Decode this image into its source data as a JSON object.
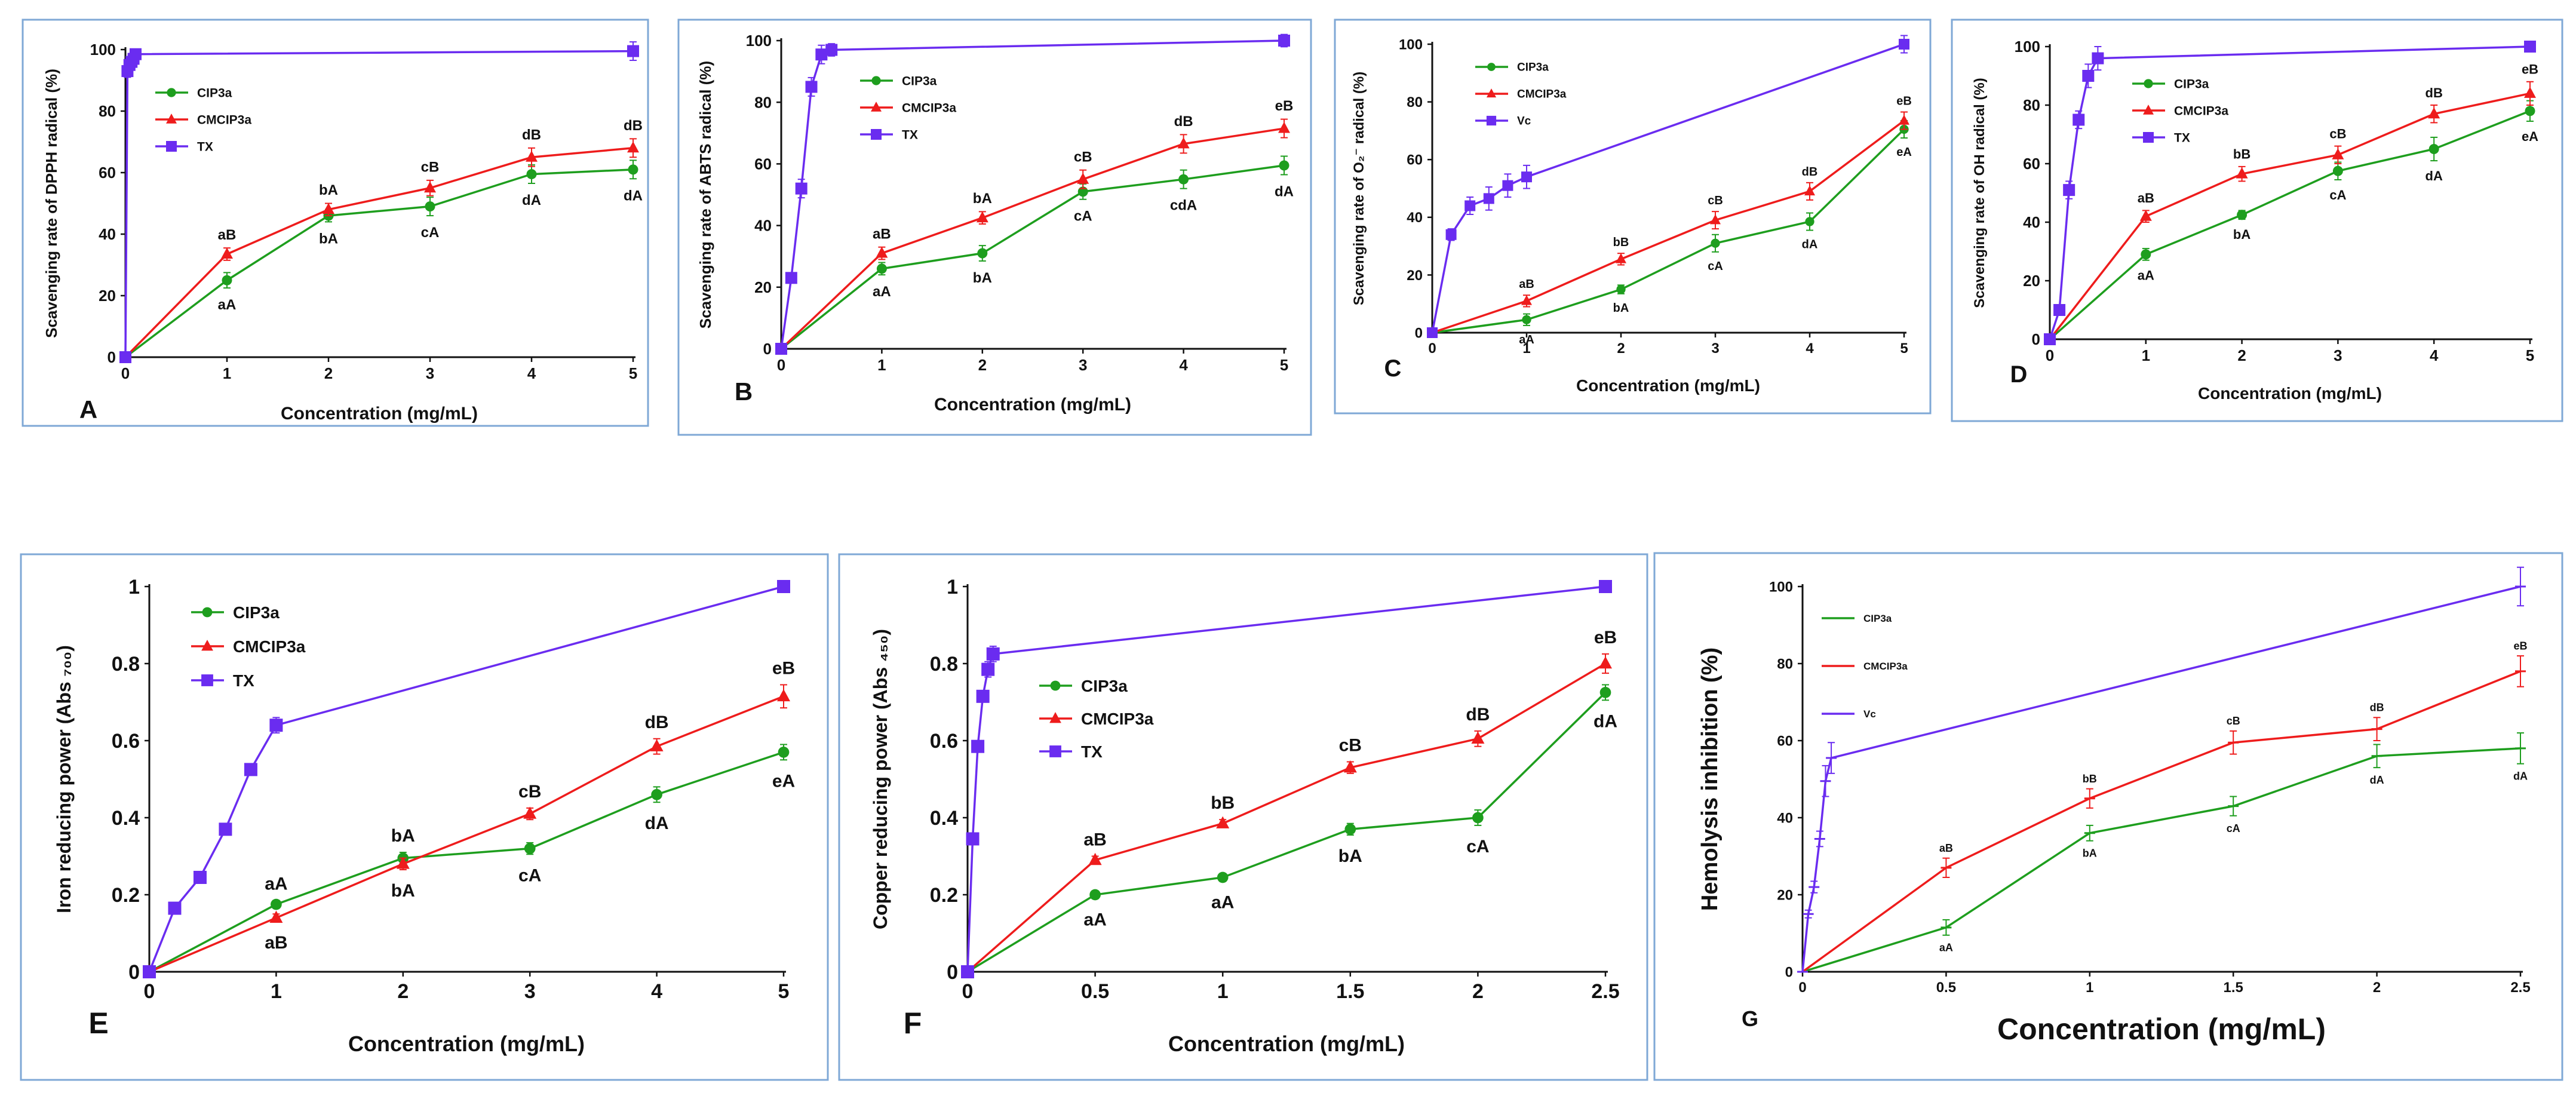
{
  "colors": {
    "green": "#1e9e1e",
    "red": "#ee1c1c",
    "purple": "#6a2cf0",
    "frame": "#7fa8d6",
    "axis": "#111111"
  },
  "chart_data": [
    {
      "type": "line",
      "panel": "A",
      "xlabel": "Concentration (mg/mL)",
      "ylabel": "Scavenging rate of DPPH radical (%)",
      "xlim": [
        0,
        5
      ],
      "ylim": [
        0,
        100
      ],
      "xticks": [
        "0",
        "1",
        "2",
        "3",
        "4",
        "5"
      ],
      "yticks": [
        "0",
        "20",
        "40",
        "60",
        "80",
        "100"
      ],
      "legend": {
        "position": "top-left",
        "labels": [
          "CIP3a",
          "CMCIP3a",
          "TX"
        ]
      },
      "series": [
        {
          "name": "CIP3a",
          "color": "green",
          "marker": "circle",
          "x": [
            0,
            1,
            2,
            3,
            4,
            5
          ],
          "y": [
            0,
            25,
            46,
            49,
            59.5,
            61
          ],
          "err": [
            0,
            2.5,
            2,
            3,
            3,
            3
          ],
          "labels": [
            "",
            "aA",
            "bA",
            "cA",
            "dA",
            "dA"
          ],
          "label_pos": "below"
        },
        {
          "name": "CMCIP3a",
          "color": "red",
          "marker": "triangle",
          "x": [
            0,
            1,
            2,
            3,
            4,
            5
          ],
          "y": [
            0,
            33.5,
            48,
            55,
            65,
            68
          ],
          "err": [
            0,
            2,
            2,
            2.5,
            3,
            3
          ],
          "labels": [
            "",
            "aB",
            "bA",
            "cB",
            "dB",
            "dB"
          ],
          "label_pos": "above"
        },
        {
          "name": "TX",
          "color": "purple",
          "marker": "square",
          "x": [
            0,
            0.02,
            0.04,
            0.06,
            0.08,
            0.1,
            5
          ],
          "y": [
            0,
            93,
            95,
            96,
            97,
            98.5,
            99.5
          ],
          "err": [
            0,
            2,
            2,
            1.5,
            1.5,
            1,
            3
          ],
          "labels": [],
          "label_pos": "above"
        }
      ]
    },
    {
      "type": "line",
      "panel": "B",
      "xlabel": "Concentration (mg/mL)",
      "ylabel": "Scavenging rate of ABTS radical (%)",
      "xlim": [
        0,
        5
      ],
      "ylim": [
        0,
        100
      ],
      "xticks": [
        "0",
        "1",
        "2",
        "3",
        "4",
        "5"
      ],
      "yticks": [
        "0",
        "20",
        "40",
        "60",
        "80",
        "100"
      ],
      "legend": {
        "position": "top-left",
        "labels": [
          "CIP3a",
          "CMCIP3a",
          "TX"
        ]
      },
      "series": [
        {
          "name": "CIP3a",
          "color": "green",
          "marker": "circle",
          "x": [
            0,
            1,
            2,
            3,
            4,
            5
          ],
          "y": [
            0,
            26,
            31,
            51,
            55,
            59.5
          ],
          "err": [
            0,
            2,
            2.5,
            2.5,
            3,
            3
          ],
          "labels": [
            "",
            "aA",
            "bA",
            "cA",
            "cdA",
            "dA"
          ],
          "label_pos": "below"
        },
        {
          "name": "CMCIP3a",
          "color": "red",
          "marker": "triangle",
          "x": [
            0,
            1,
            2,
            3,
            4,
            5
          ],
          "y": [
            0,
            31,
            42.5,
            55,
            66.5,
            71.5
          ],
          "err": [
            0,
            2,
            2,
            3,
            3,
            3
          ],
          "labels": [
            "",
            "aB",
            "bA",
            "cB",
            "dB",
            "eB"
          ],
          "label_pos": "above"
        },
        {
          "name": "TX",
          "color": "purple",
          "marker": "square",
          "x": [
            0,
            0.1,
            0.2,
            0.3,
            0.4,
            0.5,
            5
          ],
          "y": [
            0,
            23,
            52,
            85,
            95.5,
            97,
            100
          ],
          "err": [
            0,
            1,
            3,
            3,
            3,
            2,
            2
          ],
          "labels": [],
          "label_pos": "above"
        }
      ]
    },
    {
      "type": "line",
      "panel": "C",
      "xlabel": "Concentration (mg/mL)",
      "ylabel": "Scavenging rate of O₂⁻ radical (%)",
      "xlim": [
        0,
        5
      ],
      "ylim": [
        0,
        100
      ],
      "xticks": [
        "0",
        "1",
        "2",
        "3",
        "4",
        "5"
      ],
      "yticks": [
        "0",
        "20",
        "40",
        "60",
        "80",
        "100"
      ],
      "legend": {
        "position": "top-left",
        "labels": [
          "CIP3a",
          "CMCIP3a",
          "Vc"
        ]
      },
      "series": [
        {
          "name": "CIP3a",
          "color": "green",
          "marker": "circle",
          "x": [
            0,
            1,
            2,
            3,
            4,
            5
          ],
          "y": [
            0,
            4.5,
            15,
            31,
            38.5,
            70.5
          ],
          "err": [
            0,
            2,
            1.5,
            3,
            3,
            3
          ],
          "labels": [
            "",
            "aA",
            "bA",
            "cA",
            "dA",
            "eA"
          ],
          "label_pos": "below"
        },
        {
          "name": "CMCIP3a",
          "color": "red",
          "marker": "triangle",
          "x": [
            0,
            1,
            2,
            3,
            4,
            5
          ],
          "y": [
            0,
            11,
            25.5,
            39,
            49,
            73.5
          ],
          "err": [
            0,
            2,
            2,
            3,
            3,
            3
          ],
          "labels": [
            "",
            "aB",
            "bB",
            "cB",
            "dB",
            "eB"
          ],
          "label_pos": "above"
        },
        {
          "name": "Vc",
          "color": "purple",
          "marker": "square",
          "x": [
            0,
            0.2,
            0.4,
            0.6,
            0.8,
            1,
            5
          ],
          "y": [
            0,
            34,
            44,
            46.5,
            51,
            54,
            100
          ],
          "err": [
            0,
            2,
            3,
            4,
            4,
            4,
            3
          ],
          "labels": [],
          "label_pos": "above"
        }
      ]
    },
    {
      "type": "line",
      "panel": "D",
      "xlabel": "Concentration (mg/mL)",
      "ylabel": "Scavenging rate of OH radical (%)",
      "xlim": [
        0,
        5
      ],
      "ylim": [
        0,
        100
      ],
      "xticks": [
        "0",
        "1",
        "2",
        "3",
        "4",
        "5"
      ],
      "yticks": [
        "0",
        "20",
        "40",
        "60",
        "80",
        "100"
      ],
      "legend": {
        "position": "top-left",
        "labels": [
          "CIP3a",
          "CMCIP3a",
          "TX"
        ]
      },
      "series": [
        {
          "name": "CIP3a",
          "color": "green",
          "marker": "circle",
          "x": [
            0,
            1,
            2,
            3,
            4,
            5
          ],
          "y": [
            0,
            29,
            42.5,
            57.5,
            65,
            78
          ],
          "err": [
            0,
            2,
            1.5,
            3,
            4,
            3.5
          ],
          "labels": [
            "",
            "aA",
            "bA",
            "cA",
            "dA",
            "eA"
          ],
          "label_pos": "below"
        },
        {
          "name": "CMCIP3a",
          "color": "red",
          "marker": "triangle",
          "x": [
            0,
            1,
            2,
            3,
            4,
            5
          ],
          "y": [
            0,
            42,
            56.5,
            63,
            77,
            84
          ],
          "err": [
            0,
            2,
            2.5,
            3,
            3,
            4
          ],
          "labels": [
            "",
            "aB",
            "bB",
            "cB",
            "dB",
            "eB"
          ],
          "label_pos": "above"
        },
        {
          "name": "TX",
          "color": "purple",
          "marker": "square",
          "x": [
            0,
            0.1,
            0.2,
            0.3,
            0.4,
            0.5,
            5
          ],
          "y": [
            0,
            10,
            51,
            75,
            90,
            96,
            100
          ],
          "err": [
            0,
            1,
            3,
            3,
            4,
            4,
            1
          ],
          "labels": [],
          "label_pos": "above"
        }
      ]
    },
    {
      "type": "line",
      "panel": "E",
      "xlabel": "Concentration (mg/mL)",
      "ylabel": "Iron reducing power (Abs ₇₀₀)",
      "xlim": [
        0,
        5
      ],
      "ylim": [
        0,
        1
      ],
      "xticks": [
        "0",
        "1",
        "2",
        "3",
        "4",
        "5"
      ],
      "yticks": [
        "0",
        "0.2",
        "0.4",
        "0.6",
        "0.8",
        "1"
      ],
      "legend": {
        "position": "top-left",
        "labels": [
          "CIP3a",
          "CMCIP3a",
          "TX"
        ]
      },
      "series": [
        {
          "name": "CIP3a",
          "color": "green",
          "marker": "circle",
          "x": [
            0,
            1,
            2,
            3,
            4,
            5
          ],
          "y": [
            0,
            0.175,
            0.295,
            0.32,
            0.46,
            0.57
          ],
          "err": [
            0,
            0.01,
            0.015,
            0.015,
            0.02,
            0.02
          ],
          "labels": [
            "",
            "aA",
            "bA",
            "cA",
            "dA",
            "eA"
          ],
          "label_pos": "mixed-green"
        },
        {
          "name": "CMCIP3a",
          "color": "red",
          "marker": "triangle",
          "x": [
            0,
            1,
            2,
            3,
            4,
            5
          ],
          "y": [
            0,
            0.14,
            0.28,
            0.41,
            0.585,
            0.715
          ],
          "err": [
            0,
            0.01,
            0.015,
            0.015,
            0.02,
            0.03
          ],
          "labels": [
            "",
            "aB",
            "bA",
            "cB",
            "dB",
            "eB"
          ],
          "label_pos": "mixed-red"
        },
        {
          "name": "TX",
          "color": "purple",
          "marker": "square",
          "x": [
            0,
            0.2,
            0.4,
            0.6,
            0.8,
            1,
            5
          ],
          "y": [
            0,
            0.165,
            0.245,
            0.37,
            0.525,
            0.64,
            1.0
          ],
          "err": [
            0,
            0.01,
            0.01,
            0.01,
            0.01,
            0.02,
            0.015
          ],
          "labels": [],
          "label_pos": "above"
        }
      ]
    },
    {
      "type": "line",
      "panel": "F",
      "xlabel": "Concentration (mg/mL)",
      "ylabel": "Copper reducing power (Abs ₄₅₀)",
      "xlim": [
        0,
        2.5
      ],
      "ylim": [
        0,
        1
      ],
      "xticks": [
        "0",
        "0.5",
        "1",
        "1.5",
        "2",
        "2.5"
      ],
      "yticks": [
        "0",
        "0.2",
        "0.4",
        "0.6",
        "0.8",
        "1"
      ],
      "legend": {
        "position": "center-left",
        "labels": [
          "CIP3a",
          "CMCIP3a",
          "TX"
        ]
      },
      "series": [
        {
          "name": "CIP3a",
          "color": "green",
          "marker": "circle",
          "x": [
            0,
            0.5,
            1,
            1.5,
            2,
            2.5
          ],
          "y": [
            0,
            0.2,
            0.245,
            0.37,
            0.4,
            0.725
          ],
          "err": [
            0,
            0.01,
            0.01,
            0.015,
            0.02,
            0.02
          ],
          "labels": [
            "",
            "aA",
            "aA",
            "bA",
            "cA",
            "dA"
          ],
          "label_pos": "below"
        },
        {
          "name": "CMCIP3a",
          "color": "red",
          "marker": "triangle",
          "x": [
            0,
            0.5,
            1,
            1.5,
            2,
            2.5
          ],
          "y": [
            0,
            0.29,
            0.385,
            0.53,
            0.605,
            0.8
          ],
          "err": [
            0,
            0.01,
            0.01,
            0.015,
            0.02,
            0.025
          ],
          "labels": [
            "",
            "aB",
            "bB",
            "cB",
            "dB",
            "eB"
          ],
          "label_pos": "above"
        },
        {
          "name": "TX",
          "color": "purple",
          "marker": "square",
          "x": [
            0,
            0.02,
            0.04,
            0.06,
            0.08,
            0.1,
            2.5
          ],
          "y": [
            0,
            0.345,
            0.585,
            0.715,
            0.785,
            0.825,
            1.0
          ],
          "err": [
            0,
            0.01,
            0.01,
            0.01,
            0.02,
            0.02,
            0.01
          ],
          "labels": [],
          "label_pos": "above"
        }
      ]
    },
    {
      "type": "line",
      "panel": "G",
      "xlabel": "Concentration (mg/mL)",
      "ylabel": "Hemolysis inhibition (%)",
      "xlim": [
        0,
        2.5
      ],
      "ylim": [
        0,
        100
      ],
      "xticks": [
        "0",
        "0.5",
        "1",
        "1.5",
        "2",
        "2.5"
      ],
      "yticks": [
        "0",
        "20",
        "40",
        "60",
        "80",
        "100"
      ],
      "legend": {
        "position": "top-left",
        "labels": [
          "CIP3a",
          "CMCIP3a",
          "Vc"
        ]
      },
      "series": [
        {
          "name": "CIP3a",
          "color": "green",
          "marker": "dash",
          "x": [
            0,
            0.5,
            1,
            1.5,
            2,
            2.5
          ],
          "y": [
            0,
            11.5,
            36,
            43,
            56,
            58
          ],
          "err": [
            0,
            2,
            2,
            2.5,
            3,
            4
          ],
          "labels": [
            "",
            "aA",
            "bA",
            "cA",
            "dA",
            "dA"
          ],
          "label_pos": "below"
        },
        {
          "name": "CMCIP3a",
          "color": "red",
          "marker": "dash",
          "x": [
            0,
            0.5,
            1,
            1.5,
            2,
            2.5
          ],
          "y": [
            0,
            27,
            45,
            59.5,
            63,
            78
          ],
          "err": [
            0,
            2.5,
            2.5,
            3,
            3,
            4
          ],
          "labels": [
            "",
            "aB",
            "bB",
            "cB",
            "dB",
            "eB"
          ],
          "label_pos": "above"
        },
        {
          "name": "Vc",
          "color": "purple",
          "marker": "dash",
          "x": [
            0,
            0.02,
            0.04,
            0.06,
            0.08,
            0.1,
            2.5
          ],
          "y": [
            0,
            15,
            22,
            34.5,
            49.5,
            55.5,
            100
          ],
          "err": [
            0,
            1,
            1.5,
            2,
            4,
            4,
            5
          ],
          "labels": [],
          "label_pos": "above"
        }
      ]
    }
  ]
}
